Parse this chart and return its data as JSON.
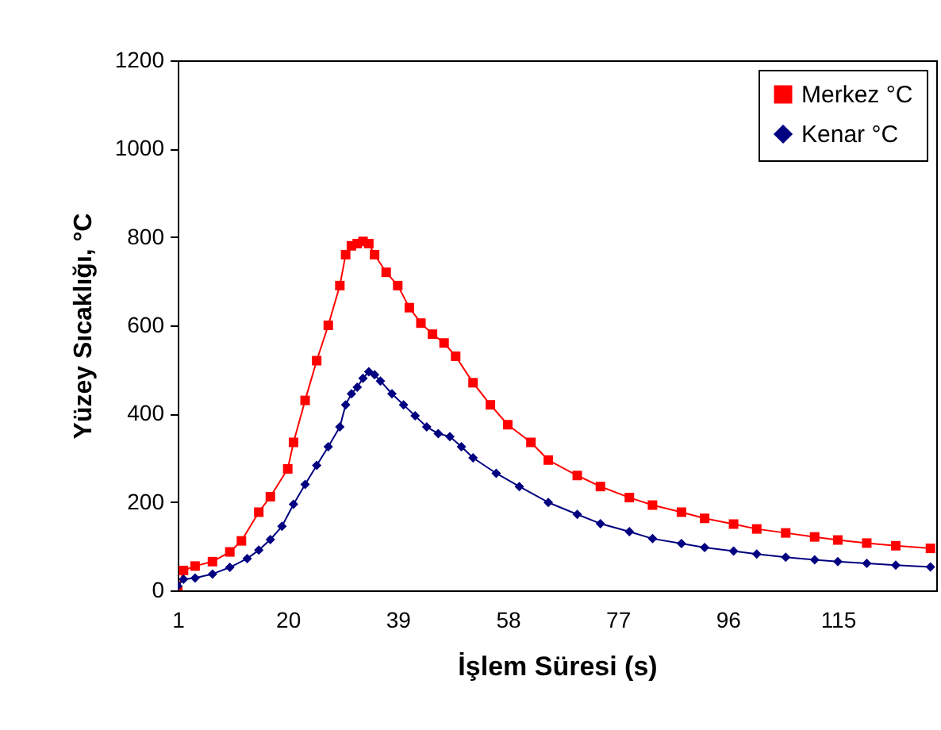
{
  "chart_data": {
    "type": "line",
    "xlabel": "İşlem Süresi (s)",
    "ylabel": "Yüzey Sıcaklığı,  °C",
    "xlim": [
      1,
      132
    ],
    "xticks": [
      1,
      20,
      39,
      58,
      77,
      96,
      115
    ],
    "ylim": [
      0,
      1200
    ],
    "yticks": [
      0,
      200,
      400,
      600,
      800,
      1000,
      1200
    ],
    "grid": false,
    "legend": "top right",
    "series": [
      {
        "name": "Merkez °C",
        "color": "#ff0000",
        "marker": "square",
        "x": [
          1,
          2,
          4,
          7,
          10,
          12,
          15,
          17,
          20,
          21,
          23,
          25,
          27,
          29,
          30,
          31,
          32,
          33,
          34,
          35,
          37,
          39,
          41,
          43,
          45,
          47,
          49,
          52,
          55,
          58,
          62,
          65,
          70,
          74,
          79,
          83,
          88,
          92,
          97,
          101,
          106,
          111,
          115,
          120,
          125,
          131
        ],
        "values": [
          0,
          45,
          55,
          65,
          87,
          112,
          177,
          212,
          275,
          335,
          430,
          520,
          600,
          690,
          760,
          780,
          785,
          790,
          785,
          760,
          720,
          690,
          640,
          605,
          580,
          560,
          530,
          470,
          420,
          375,
          335,
          295,
          260,
          235,
          210,
          193,
          177,
          163,
          150,
          139,
          130,
          121,
          114,
          107,
          101,
          95
        ]
      },
      {
        "name": "Kenar °C",
        "color": "#000080",
        "marker": "diamond",
        "x": [
          1,
          2,
          4,
          7,
          10,
          13,
          15,
          17,
          19,
          21,
          23,
          25,
          27,
          29,
          30,
          31,
          32,
          33,
          34,
          35,
          36,
          38,
          40,
          42,
          44,
          46,
          48,
          50,
          52,
          56,
          60,
          65,
          70,
          74,
          79,
          83,
          88,
          92,
          97,
          101,
          106,
          111,
          115,
          120,
          125,
          131
        ],
        "values": [
          10,
          25,
          28,
          37,
          52,
          72,
          91,
          115,
          145,
          195,
          240,
          283,
          325,
          370,
          420,
          445,
          460,
          480,
          495,
          488,
          474,
          445,
          420,
          395,
          370,
          355,
          348,
          325,
          300,
          265,
          235,
          199,
          172,
          151,
          133,
          117,
          106,
          97,
          89,
          82,
          75,
          69,
          65,
          61,
          57,
          53
        ]
      }
    ]
  }
}
